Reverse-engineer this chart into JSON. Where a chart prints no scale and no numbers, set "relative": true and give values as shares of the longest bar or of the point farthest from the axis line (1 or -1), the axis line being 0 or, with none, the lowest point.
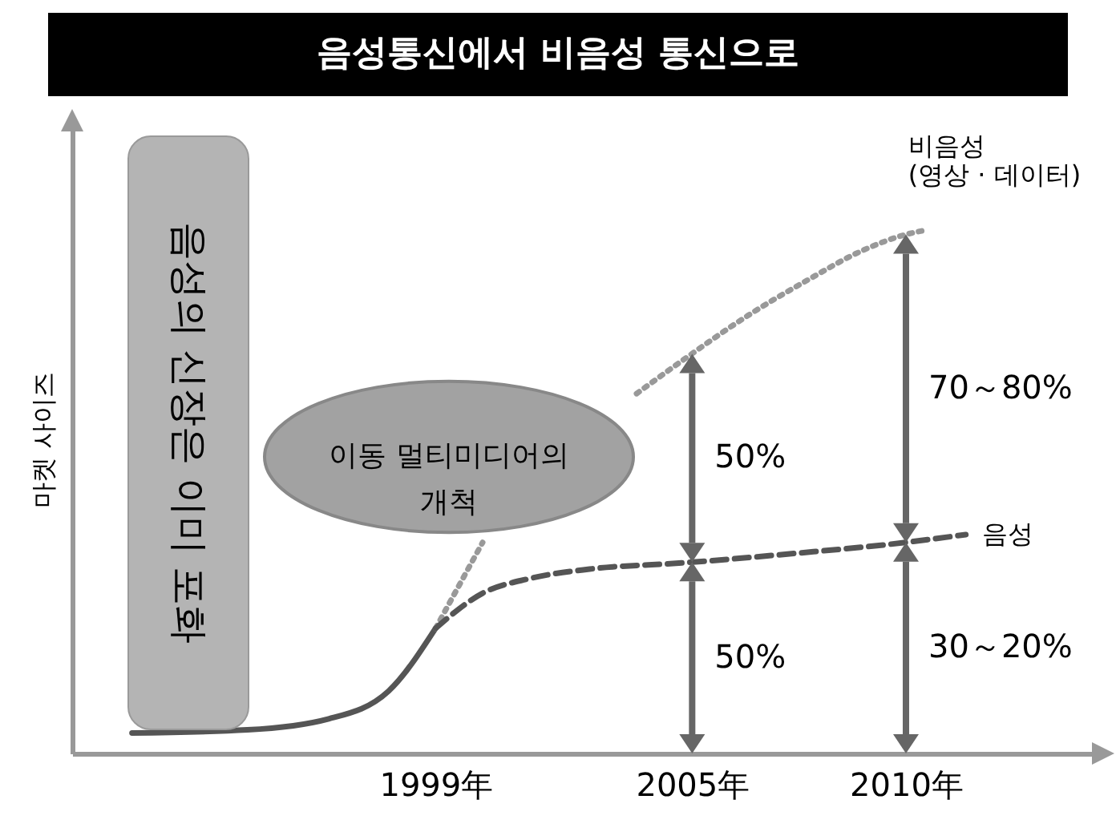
{
  "chart_data": {
    "type": "line",
    "title": "음성통신에서 비음성 통신으로",
    "ylabel": "마켓 사이즈",
    "relative": true,
    "marker": "none",
    "xlim": [
      1990.5,
      2014.5
    ],
    "xticks": [
      {
        "value": 1999,
        "label": "1999年"
      },
      {
        "value": 2005,
        "label": "2005年"
      },
      {
        "value": 2010,
        "label": "2010年"
      }
    ],
    "series": [
      {
        "color": "#555555",
        "line_style": "solid",
        "x": [
          1991.9,
          1994.6,
          1996.5,
          1997.9,
          1999
        ],
        "values": [
          0.039,
          0.045,
          0.066,
          0.119,
          0.239
        ]
      },
      {
        "name": "비음성\n(영상 · 데이터)",
        "color": "#999999",
        "line_style": "dotted",
        "x": [
          1999,
          2000.1,
          2001.2,
          2002.3,
          2003.7,
          2004.8,
          2006.3,
          2007.7,
          2009.0,
          2010.0,
          2010.5
        ],
        "values": [
          0.239,
          0.403,
          null,
          null,
          0.687,
          0.752,
          0.836,
          0.904,
          0.961,
          0.991,
          1.0
        ]
      },
      {
        "name": "음성",
        "color": "#555555",
        "line_style": "dashed",
        "x": [
          1999,
          2000.1,
          2001.2,
          2002.6,
          2004.8,
          2007.4,
          2010.0,
          2011.4
        ],
        "values": [
          0.239,
          0.306,
          0.334,
          0.352,
          0.364,
          0.382,
          0.403,
          0.418
        ]
      }
    ],
    "annotations": [
      "음성의 신장은 이미 포화",
      "이동 멀티미디어의\n개척",
      "50%",
      "50%",
      "70～80%",
      "30～20%"
    ]
  }
}
